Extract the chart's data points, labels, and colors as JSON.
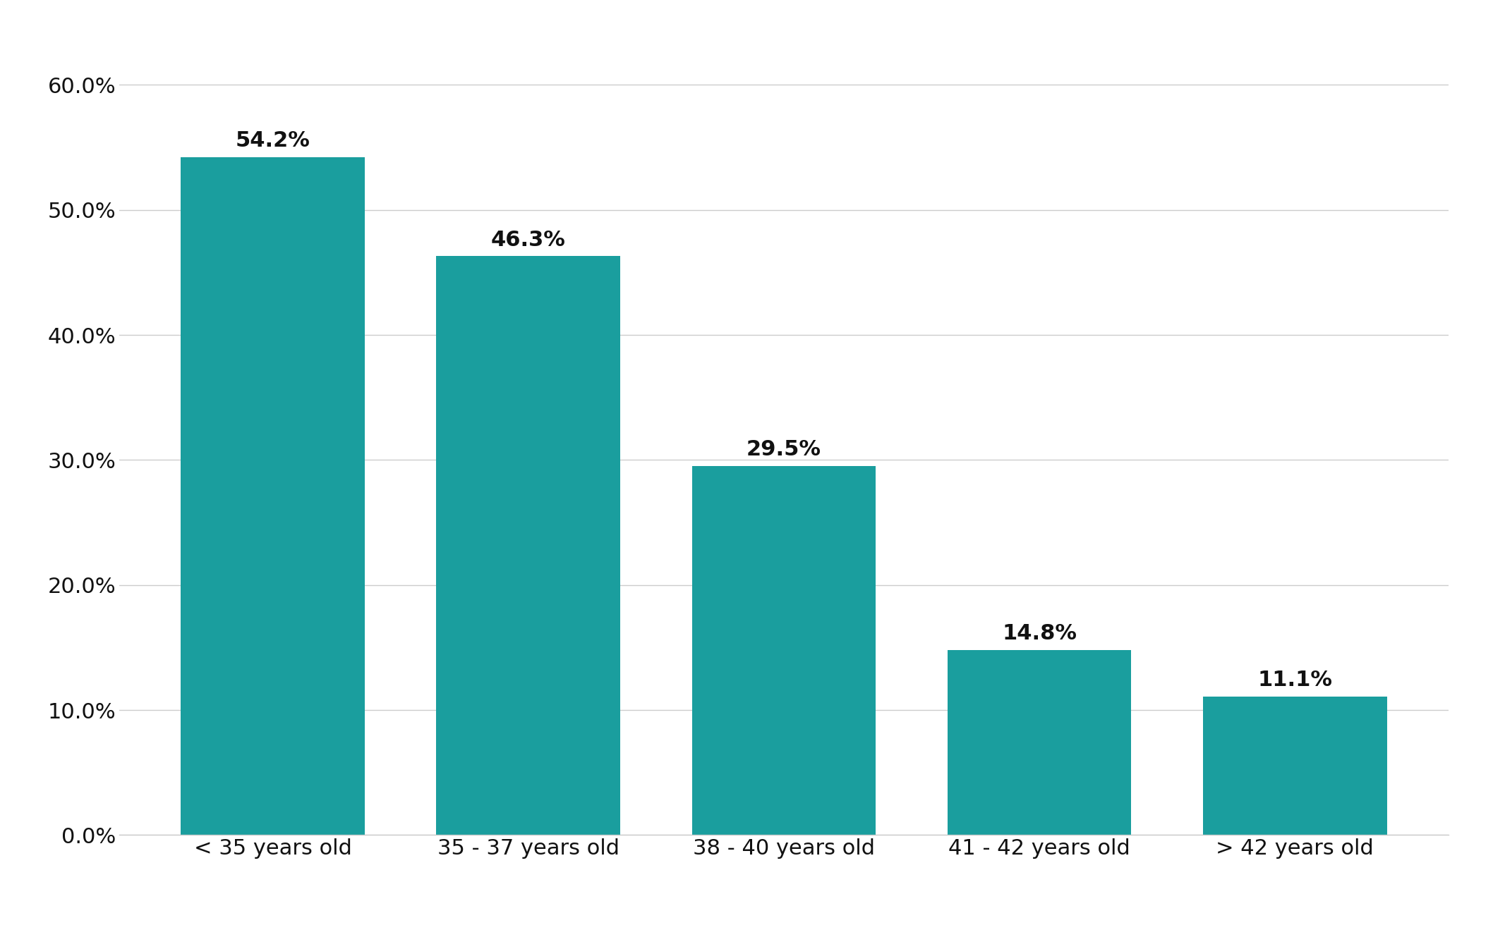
{
  "categories": [
    "< 35 years old",
    "35 - 37 years old",
    "38 - 40 years old",
    "41 - 42 years old",
    "> 42 years old"
  ],
  "values": [
    54.2,
    46.3,
    29.5,
    14.8,
    11.1
  ],
  "bar_color": "#1a9e9e",
  "background_color": "#ffffff",
  "ylim": [
    0,
    63
  ],
  "yticks": [
    0.0,
    10.0,
    20.0,
    30.0,
    40.0,
    50.0,
    60.0
  ],
  "ytick_labels": [
    "0.0%",
    "10.0%",
    "20.0%",
    "30.0%",
    "40.0%",
    "50.0%",
    "60.0%"
  ],
  "tick_fontsize": 22,
  "bar_label_fontsize": 22,
  "grid_color": "#cccccc",
  "bar_width": 0.72
}
